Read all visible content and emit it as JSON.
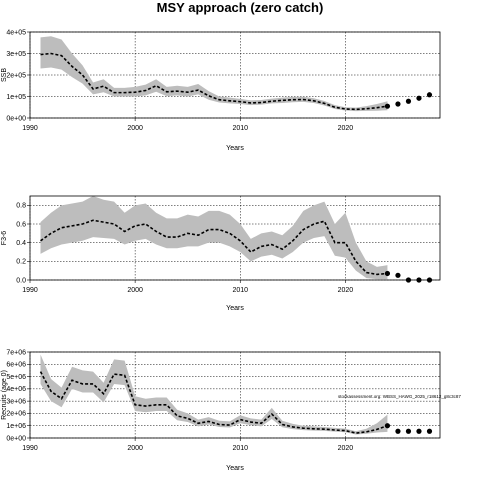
{
  "page_title": "MSY approach (zero catch)",
  "chart_data": [
    {
      "type": "line",
      "panel": "ssb",
      "title": "",
      "xlabel": "Years",
      "ylabel": "SSB",
      "xlim": [
        1990,
        2029
      ],
      "ylim": [
        0,
        400000
      ],
      "xticks": [
        1990,
        2000,
        2010,
        2020
      ],
      "yticks": [
        0,
        100000,
        200000,
        300000,
        400000
      ],
      "ytick_labels": [
        "0e+00",
        "1e+05",
        "2e+05",
        "3e+05",
        "4e+05"
      ],
      "grid": "dotted at major ticks",
      "series": [
        {
          "role": "historical median with confidence band",
          "x": [
            1991,
            1992,
            1993,
            1994,
            1995,
            1996,
            1997,
            1998,
            1999,
            2000,
            2001,
            2002,
            2003,
            2004,
            2005,
            2006,
            2007,
            2008,
            2009,
            2010,
            2011,
            2012,
            2013,
            2014,
            2015,
            2016,
            2017,
            2018,
            2019,
            2020,
            2021,
            2022,
            2023,
            2024
          ],
          "values": [
            295000,
            300000,
            290000,
            240000,
            200000,
            135000,
            148000,
            118000,
            118000,
            120000,
            128000,
            150000,
            122000,
            125000,
            120000,
            130000,
            103000,
            85000,
            80000,
            76000,
            70000,
            72000,
            78000,
            82000,
            85000,
            86000,
            80000,
            68000,
            50000,
            42000,
            40000,
            43000,
            48000,
            55000
          ],
          "lower": [
            230000,
            235000,
            225000,
            190000,
            160000,
            110000,
            120000,
            100000,
            100000,
            100000,
            105000,
            122000,
            102000,
            105000,
            100000,
            110000,
            85000,
            72000,
            68000,
            65000,
            60000,
            62000,
            68000,
            70000,
            73000,
            75000,
            70000,
            58000,
            42000,
            35000,
            32000,
            33000,
            34000,
            36000
          ],
          "upper": [
            375000,
            380000,
            365000,
            300000,
            245000,
            165000,
            180000,
            140000,
            140000,
            145000,
            155000,
            180000,
            145000,
            150000,
            145000,
            158000,
            125000,
            100000,
            95000,
            89000,
            82000,
            84000,
            90000,
            95000,
            98000,
            99000,
            92000,
            79000,
            60000,
            50000,
            48000,
            55000,
            65000,
            78000
          ]
        },
        {
          "role": "projection",
          "x": [
            2024,
            2025,
            2026,
            2027,
            2028
          ],
          "values": [
            55000,
            65000,
            78000,
            92000,
            108000
          ]
        }
      ]
    },
    {
      "type": "line",
      "panel": "f",
      "title": "",
      "xlabel": "Years",
      "ylabel": "F3-6",
      "xlim": [
        1990,
        2029
      ],
      "ylim": [
        0,
        0.9
      ],
      "xticks": [
        1990,
        2000,
        2010,
        2020
      ],
      "yticks": [
        0.0,
        0.2,
        0.4,
        0.6,
        0.8
      ],
      "ytick_labels": [
        "0.0",
        "0.2",
        "0.4",
        "0.6",
        "0.8"
      ],
      "grid": "dotted at major ticks",
      "series": [
        {
          "role": "historical median with confidence band",
          "x": [
            1991,
            1992,
            1993,
            1994,
            1995,
            1996,
            1997,
            1998,
            1999,
            2000,
            2001,
            2002,
            2003,
            2004,
            2005,
            2006,
            2007,
            2008,
            2009,
            2010,
            2011,
            2012,
            2013,
            2014,
            2015,
            2016,
            2017,
            2018,
            2019,
            2020,
            2021,
            2022,
            2023,
            2024
          ],
          "values": [
            0.42,
            0.5,
            0.56,
            0.58,
            0.6,
            0.64,
            0.62,
            0.6,
            0.52,
            0.58,
            0.6,
            0.52,
            0.46,
            0.46,
            0.5,
            0.48,
            0.54,
            0.54,
            0.5,
            0.42,
            0.3,
            0.36,
            0.38,
            0.33,
            0.42,
            0.54,
            0.6,
            0.63,
            0.4,
            0.4,
            0.2,
            0.08,
            0.06,
            0.07
          ],
          "lower": [
            0.28,
            0.34,
            0.38,
            0.4,
            0.42,
            0.46,
            0.45,
            0.44,
            0.38,
            0.42,
            0.44,
            0.38,
            0.34,
            0.34,
            0.36,
            0.36,
            0.4,
            0.4,
            0.36,
            0.3,
            0.2,
            0.25,
            0.27,
            0.23,
            0.3,
            0.4,
            0.45,
            0.47,
            0.26,
            0.24,
            0.1,
            0.02,
            0.01,
            0.01
          ],
          "upper": [
            0.62,
            0.72,
            0.8,
            0.82,
            0.84,
            0.9,
            0.86,
            0.84,
            0.72,
            0.8,
            0.82,
            0.72,
            0.66,
            0.66,
            0.7,
            0.68,
            0.74,
            0.74,
            0.7,
            0.6,
            0.44,
            0.5,
            0.52,
            0.48,
            0.58,
            0.74,
            0.8,
            0.84,
            0.6,
            0.72,
            0.4,
            0.2,
            0.14,
            0.16
          ]
        },
        {
          "role": "projection",
          "x": [
            2024,
            2025,
            2026,
            2027,
            2028
          ],
          "values": [
            0.07,
            0.05,
            0.0,
            0.0,
            0.0
          ]
        }
      ]
    },
    {
      "type": "line",
      "panel": "recruitment",
      "title": "",
      "xlabel": "Years",
      "ylabel": "Recruits (age 0)",
      "xlim": [
        1990,
        2029
      ],
      "ylim": [
        0,
        7000000
      ],
      "xticks": [
        1990,
        2000,
        2010,
        2020
      ],
      "yticks": [
        0,
        1000000,
        2000000,
        3000000,
        4000000,
        5000000,
        6000000,
        7000000
      ],
      "ytick_labels": [
        "0e+00",
        "1e+06",
        "2e+06",
        "3e+06",
        "4e+06",
        "5e+06",
        "6e+06",
        "7e+06"
      ],
      "grid": "dotted at major ticks",
      "annotation": "stockassessment.org: WBSS_HAWG_2025_r18612_g8c3c87",
      "series": [
        {
          "role": "historical median with confidence band",
          "x": [
            1991,
            1992,
            1993,
            1994,
            1995,
            1996,
            1997,
            1998,
            1999,
            2000,
            2001,
            2002,
            2003,
            2004,
            2005,
            2006,
            2007,
            2008,
            2009,
            2010,
            2011,
            2012,
            2013,
            2014,
            2015,
            2016,
            2017,
            2018,
            2019,
            2020,
            2021,
            2022,
            2023,
            2024
          ],
          "values": [
            5400000,
            3800000,
            3200000,
            4700000,
            4400000,
            4400000,
            3600000,
            5200000,
            5100000,
            2700000,
            2600000,
            2700000,
            2700000,
            1800000,
            1600000,
            1200000,
            1350000,
            1100000,
            1050000,
            1500000,
            1300000,
            1200000,
            1950000,
            1100000,
            900000,
            800000,
            750000,
            720000,
            650000,
            600000,
            400000,
            500000,
            700000,
            1000000
          ],
          "lower": [
            4400000,
            3000000,
            2500000,
            4000000,
            3700000,
            3700000,
            2900000,
            4400000,
            4300000,
            2200000,
            2100000,
            2200000,
            2200000,
            1450000,
            1300000,
            950000,
            1100000,
            900000,
            850000,
            1200000,
            1050000,
            950000,
            1550000,
            880000,
            720000,
            640000,
            600000,
            580000,
            520000,
            470000,
            290000,
            350000,
            450000,
            500000
          ],
          "upper": [
            6800000,
            4800000,
            4100000,
            5800000,
            5500000,
            5400000,
            4500000,
            6400000,
            6300000,
            3400000,
            3200000,
            3300000,
            3300000,
            2300000,
            2000000,
            1500000,
            1700000,
            1400000,
            1350000,
            1850000,
            1600000,
            1500000,
            2450000,
            1400000,
            1150000,
            1000000,
            950000,
            900000,
            820000,
            760000,
            550000,
            750000,
            1200000,
            1900000
          ]
        },
        {
          "role": "projection",
          "x": [
            2024,
            2025,
            2026,
            2027,
            2028
          ],
          "values": [
            1000000,
            550000,
            550000,
            550000,
            550000
          ]
        }
      ]
    }
  ]
}
